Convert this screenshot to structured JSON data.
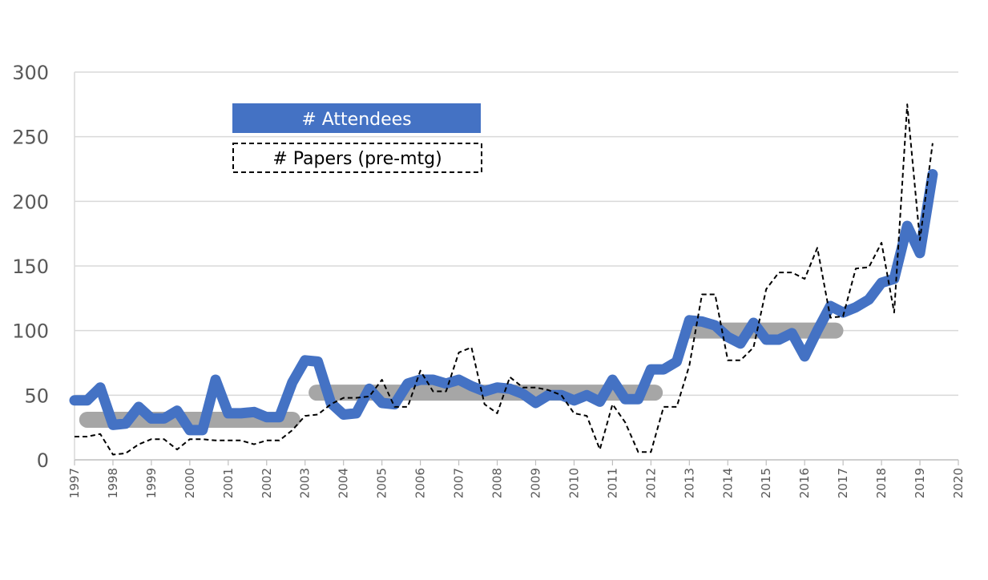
{
  "chart_data": {
    "type": "line",
    "title": "",
    "xlabel": "",
    "ylabel": "",
    "ylim": [
      0,
      300
    ],
    "yticks": [
      0,
      50,
      100,
      150,
      200,
      250,
      300
    ],
    "xlim": [
      1997,
      2020
    ],
    "xticks": [
      "1997",
      "1998",
      "1999",
      "2000",
      "2001",
      "2002",
      "2003",
      "2004",
      "2005",
      "2006",
      "2007",
      "2008",
      "2009",
      "2010",
      "2011",
      "2012",
      "2013",
      "2014",
      "2015",
      "2016",
      "2017",
      "2018",
      "2019",
      "2020"
    ],
    "grid": true,
    "legend_position": "top-left",
    "series": [
      {
        "name": "# Attendees",
        "color": "#4472c4",
        "style": "solid",
        "x": [
          1997.0,
          1997.33,
          1997.67,
          1998.0,
          1998.33,
          1998.67,
          1999.0,
          1999.33,
          1999.67,
          2000.0,
          2000.33,
          2000.67,
          2001.0,
          2001.33,
          2001.67,
          2002.0,
          2002.33,
          2002.67,
          2003.0,
          2003.33,
          2003.67,
          2004.0,
          2004.33,
          2004.67,
          2005.0,
          2005.33,
          2005.67,
          2006.0,
          2006.33,
          2006.67,
          2007.0,
          2007.33,
          2007.67,
          2008.0,
          2008.33,
          2008.67,
          2009.0,
          2009.33,
          2009.67,
          2010.0,
          2010.33,
          2010.67,
          2011.0,
          2011.33,
          2011.67,
          2012.0,
          2012.33,
          2012.67,
          2013.0,
          2013.33,
          2013.67,
          2014.0,
          2014.33,
          2014.67,
          2015.0,
          2015.33,
          2015.67,
          2016.0,
          2016.33,
          2016.67,
          2017.0,
          2017.33,
          2017.67,
          2018.0,
          2018.33,
          2018.67,
          2019.0,
          2019.33
        ],
        "values": [
          46,
          46,
          56,
          27,
          28,
          41,
          32,
          32,
          38,
          23,
          23,
          62,
          36,
          36,
          37,
          33,
          33,
          60,
          77,
          76,
          44,
          35,
          36,
          55,
          44,
          43,
          59,
          62,
          62,
          59,
          62,
          57,
          53,
          56,
          55,
          51,
          44,
          50,
          50,
          46,
          50,
          45,
          62,
          47,
          47,
          70,
          70,
          76,
          108,
          107,
          104,
          95,
          90,
          106,
          93,
          93,
          98,
          80,
          100,
          119,
          114,
          118,
          124,
          137,
          140,
          181,
          160,
          221
        ]
      },
      {
        "name": "# Papers (pre-mtg)",
        "color": "#000000",
        "style": "dashed",
        "x": [
          1997.0,
          1997.33,
          1997.67,
          1998.0,
          1998.33,
          1998.67,
          1999.0,
          1999.33,
          1999.67,
          2000.0,
          2000.33,
          2000.67,
          2001.0,
          2001.33,
          2001.67,
          2002.0,
          2002.33,
          2002.67,
          2003.0,
          2003.33,
          2003.67,
          2004.0,
          2004.33,
          2004.67,
          2005.0,
          2005.33,
          2005.67,
          2006.0,
          2006.33,
          2006.67,
          2007.0,
          2007.33,
          2007.67,
          2008.0,
          2008.33,
          2008.67,
          2009.0,
          2009.33,
          2009.67,
          2010.0,
          2010.33,
          2010.67,
          2011.0,
          2011.33,
          2011.67,
          2012.0,
          2012.33,
          2012.67,
          2013.0,
          2013.33,
          2013.67,
          2014.0,
          2014.33,
          2014.67,
          2015.0,
          2015.33,
          2015.67,
          2016.0,
          2016.33,
          2016.67,
          2017.0,
          2017.33,
          2017.67,
          2018.0,
          2018.33,
          2018.67,
          2019.0,
          2019.33
        ],
        "values": [
          18,
          18,
          20,
          4,
          5,
          12,
          16,
          16,
          8,
          16,
          16,
          15,
          15,
          15,
          12,
          15,
          15,
          23,
          34,
          35,
          43,
          48,
          48,
          49,
          62,
          41,
          41,
          69,
          53,
          53,
          83,
          87,
          43,
          36,
          64,
          56,
          56,
          54,
          50,
          36,
          34,
          8,
          43,
          29,
          6,
          6,
          41,
          41,
          73,
          128,
          128,
          77,
          77,
          87,
          132,
          145,
          145,
          140,
          164,
          110,
          111,
          148,
          149,
          168,
          114,
          275,
          170,
          245
        ]
      }
    ],
    "trend_bands": [
      {
        "x_start": 1997.33,
        "x_end": 2002.67,
        "value": 31
      },
      {
        "x_start": 2003.3,
        "x_end": 2012.1,
        "value": 52
      },
      {
        "x_start": 2013.0,
        "x_end": 2016.8,
        "value": 100
      }
    ],
    "band_color": "#a6a6a6"
  }
}
